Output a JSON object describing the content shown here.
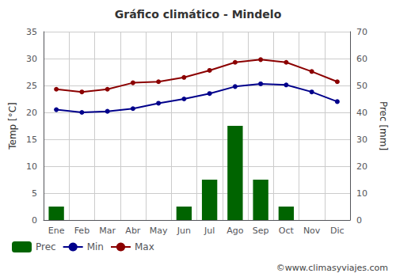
{
  "chart_data": {
    "type": "bar",
    "title": "Gráfico climático - Mindelo",
    "categories": [
      "Ene",
      "Feb",
      "Mar",
      "Abr",
      "May",
      "Jun",
      "Jul",
      "Ago",
      "Sep",
      "Oct",
      "Nov",
      "Dic"
    ],
    "series": [
      {
        "name": "Prec",
        "type": "bar",
        "color": "#006400",
        "axis": "y2",
        "values": [
          5.0,
          0.0,
          0.0,
          0.0,
          0.0,
          5.0,
          15.0,
          35.0,
          15.0,
          5.0,
          0.0,
          0.0
        ]
      },
      {
        "name": "Min",
        "type": "line",
        "color": "#00008b",
        "marker": "circle",
        "values": [
          20.5,
          20.0,
          20.2,
          20.7,
          21.7,
          22.5,
          23.5,
          24.8,
          25.3,
          25.1,
          23.8,
          22.0
        ]
      },
      {
        "name": "Max",
        "type": "line",
        "color": "#8b0000",
        "marker": "circle",
        "values": [
          24.3,
          23.8,
          24.3,
          25.5,
          25.7,
          26.5,
          27.8,
          29.3,
          29.8,
          29.3,
          27.6,
          25.7
        ]
      }
    ],
    "ylabel": "Temp [°C]",
    "y2label": "Prec [mm]",
    "ylim": [
      0,
      35
    ],
    "yticks": [
      0,
      5,
      10,
      15,
      20,
      25,
      30,
      35
    ],
    "y2lim": [
      0,
      70
    ],
    "y2ticks": [
      0,
      10,
      20,
      30,
      40,
      50,
      60,
      70
    ],
    "grid": true,
    "legend": "bottom",
    "annotations": [
      "©www.climasyviajes.com"
    ]
  }
}
